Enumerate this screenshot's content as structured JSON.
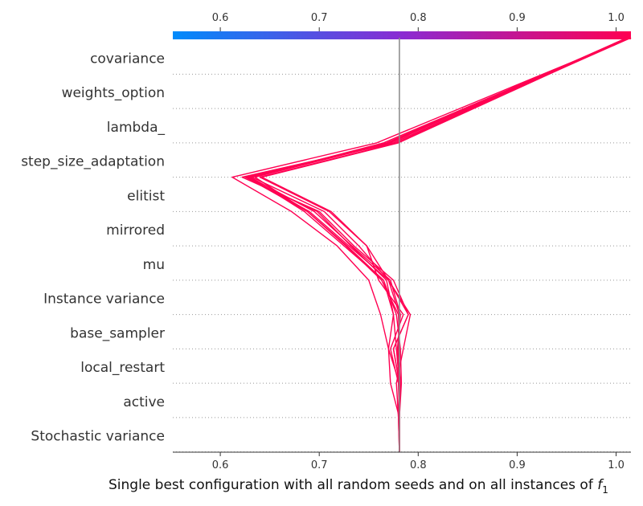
{
  "chart_data": {
    "type": "line",
    "xlabel": "Single best configuration with all random seeds and on all instances of",
    "xlabel_symbol": "f",
    "xlabel_subscript": "1",
    "xlim": [
      0.552,
      1.015
    ],
    "x_ticks": [
      0.6,
      0.7,
      0.8,
      0.9,
      1.0
    ],
    "x_tick_labels": [
      "0.6",
      "0.7",
      "0.8",
      "0.9",
      "1.0"
    ],
    "base_value": 0.781,
    "features": [
      "covariance",
      "weights_option",
      "lambda_",
      "step_size_adaptation",
      "elitist",
      "mirrored",
      "mu",
      "Instance variance",
      "base_sampler",
      "local_restart",
      "active",
      "Stochastic variance"
    ],
    "colorbar": {
      "from": "#008bfb",
      "mid": "#8a2bd2",
      "to": "#ff0052"
    },
    "line_color": "#ff0052",
    "series": [
      {
        "values": [
          0.781,
          0.781,
          0.781,
          0.781,
          0.77,
          0.775,
          0.765,
          0.725,
          0.685,
          0.63,
          0.77,
          1.015
        ]
      },
      {
        "values": [
          0.781,
          0.781,
          0.78,
          0.781,
          0.775,
          0.79,
          0.775,
          0.735,
          0.7,
          0.622,
          0.775,
          1.012
        ]
      },
      {
        "values": [
          0.781,
          0.781,
          0.78,
          0.778,
          0.785,
          0.792,
          0.77,
          0.74,
          0.705,
          0.632,
          0.765,
          1.014
        ]
      },
      {
        "values": [
          0.781,
          0.781,
          0.781,
          0.782,
          0.78,
          0.781,
          0.77,
          0.73,
          0.69,
          0.628,
          0.77,
          1.013
        ]
      },
      {
        "values": [
          0.781,
          0.781,
          0.781,
          0.781,
          0.778,
          0.775,
          0.768,
          0.732,
          0.698,
          0.625,
          0.775,
          1.015
        ]
      },
      {
        "values": [
          0.781,
          0.781,
          0.781,
          0.783,
          0.782,
          0.778,
          0.765,
          0.728,
          0.688,
          0.635,
          0.772,
          1.011
        ]
      },
      {
        "values": [
          0.781,
          0.781,
          0.781,
          0.781,
          0.775,
          0.79,
          0.77,
          0.748,
          0.71,
          0.64,
          0.778,
          1.012
        ]
      },
      {
        "values": [
          0.781,
          0.781,
          0.781,
          0.78,
          0.772,
          0.785,
          0.76,
          0.748,
          0.712,
          0.642,
          0.78,
          1.013
        ]
      },
      {
        "values": [
          0.781,
          0.781,
          0.781,
          0.772,
          0.77,
          0.762,
          0.75,
          0.718,
          0.672,
          0.612,
          0.758,
          1.015
        ]
      },
      {
        "values": [
          0.781,
          0.781,
          0.781,
          0.781,
          0.779,
          0.782,
          0.772,
          0.733,
          0.695,
          0.63,
          0.768,
          1.014
        ]
      },
      {
        "values": [
          0.781,
          0.781,
          0.781,
          0.781,
          0.781,
          0.78,
          0.763,
          0.727,
          0.688,
          0.626,
          0.771,
          1.012
        ]
      }
    ]
  }
}
